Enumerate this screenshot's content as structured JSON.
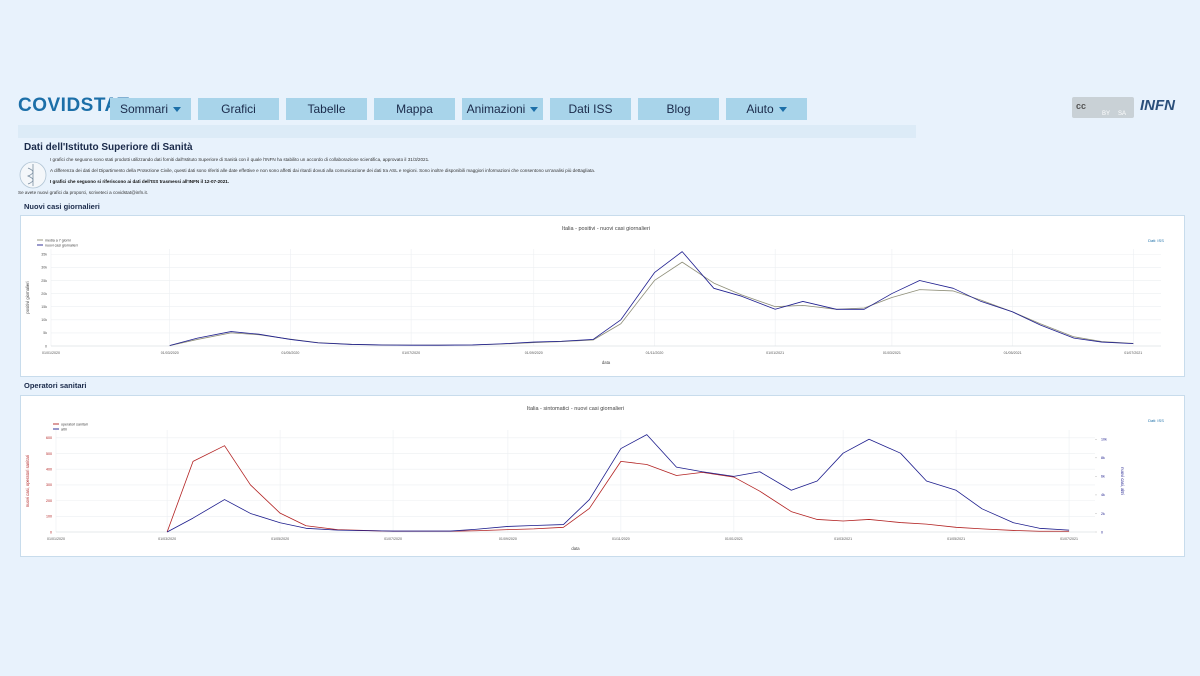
{
  "header": {
    "logo": "COVIDSTAT",
    "menu": [
      {
        "label": "Sommari",
        "dropdown": true
      },
      {
        "label": "Grafici",
        "dropdown": false
      },
      {
        "label": "Tabelle",
        "dropdown": false
      },
      {
        "label": "Mappa",
        "dropdown": false
      },
      {
        "label": "Animazioni",
        "dropdown": true
      },
      {
        "label": "Dati ISS",
        "dropdown": false
      },
      {
        "label": "Blog",
        "dropdown": false
      },
      {
        "label": "Aiuto",
        "dropdown": true
      }
    ],
    "license": {
      "cc": "cc",
      "by": "BY",
      "sa": "SA"
    },
    "partner": "INFN"
  },
  "intro": {
    "title": "Dati dell'Istituto Superiore di Sanità",
    "paragraphs": [
      "I grafici che seguono sono stati prodotti utilizzando dati forniti dall'Istituto Superiore di Sanità con il quale l'INFN ha stabilito un accordo di collaborazione scientifica, approvato il 31/3/2021.",
      "A differenza dei dati del Dipartimento della Protezione Civile, questi dati sono riferiti alle date effettive e non sono affetti dai ritardi dovuti alla comunicazione dei dati tra ASL e regioni. Sono inoltre disponibili maggiori informazioni che consentono un'analisi più dettagliata.",
      "I grafici che seguono si riferiscono ai dati dell'ISS trasmessi all'INFN il 12-07-2021."
    ],
    "contact": "Se avete nuovi grafici da proporci, scriveteci a covidstat@infn.it."
  },
  "sections": [
    "Nuovi casi giornalieri",
    "Operatori sanitari"
  ],
  "chart_data": [
    {
      "type": "line",
      "title": "Italia - positivi - nuovi casi giornalieri",
      "source": "Dati: ISS",
      "xlabel": "data",
      "ylabel": "positivi giornalieri",
      "legend": "top-left",
      "grid": true,
      "x": [
        "01/03/2020",
        "15/03/2020",
        "01/04/2020",
        "15/04/2020",
        "01/05/2020",
        "15/05/2020",
        "01/06/2020",
        "15/06/2020",
        "01/07/2020",
        "15/07/2020",
        "01/08/2020",
        "15/08/2020",
        "01/09/2020",
        "15/09/2020",
        "01/10/2020",
        "15/10/2020",
        "01/11/2020",
        "15/11/2020",
        "01/12/2020",
        "15/12/2020",
        "01/01/2021",
        "15/01/2021",
        "01/02/2021",
        "15/02/2021",
        "01/03/2021",
        "15/03/2021",
        "01/04/2021",
        "15/04/2021",
        "01/05/2021",
        "15/05/2021",
        "01/06/2021",
        "15/06/2021",
        "01/07/2021"
      ],
      "xlim": [
        "01/01/2020",
        "15/07/2021"
      ],
      "xticks": [
        "01/01/2020",
        "01/03/2020",
        "01/05/2020",
        "01/07/2020",
        "01/09/2020",
        "01/11/2020",
        "01/01/2021",
        "01/03/2021",
        "01/05/2021",
        "01/07/2021"
      ],
      "ylim": [
        0,
        37000
      ],
      "yticks": [
        0,
        {
          "value": 5000,
          "label": "5k"
        },
        {
          "value": 10000,
          "label": "10k"
        },
        {
          "value": 15000,
          "label": "15k"
        },
        {
          "value": 20000,
          "label": "20k"
        },
        {
          "value": 25000,
          "label": "25k"
        },
        {
          "value": 30000,
          "label": "30k"
        },
        {
          "value": 35000,
          "label": "35k"
        }
      ],
      "series": [
        {
          "name": "media a 7 giorni",
          "color": "#8e8e78",
          "values": [
            150,
            2500,
            5000,
            4300,
            2600,
            1300,
            650,
            420,
            320,
            300,
            380,
            700,
            1300,
            1700,
            2300,
            8500,
            25000,
            32000,
            24000,
            19500,
            15000,
            15500,
            14000,
            14500,
            18500,
            21500,
            21000,
            17500,
            13000,
            8500,
            3500,
            1700,
            1000
          ]
        },
        {
          "name": "nuovi casi giornalieri",
          "color": "#1f1f8f",
          "values": [
            200,
            3000,
            5500,
            4500,
            2500,
            1200,
            600,
            400,
            300,
            300,
            400,
            800,
            1500,
            1800,
            2500,
            10000,
            28000,
            36000,
            22000,
            19000,
            14000,
            17000,
            14000,
            14000,
            20000,
            25000,
            22000,
            17000,
            13000,
            8000,
            3000,
            1500,
            900
          ]
        }
      ]
    },
    {
      "type": "line",
      "title": "Italia - sintomatici - nuovi casi giornalieri",
      "source": "Dati: ISS",
      "xlabel": "data",
      "ylabel": "nuovi casi, operatori sanitari",
      "y2label": "nuovi casi, altri",
      "legend": "top-left",
      "grid": true,
      "x": [
        "01/03/2020",
        "15/03/2020",
        "01/04/2020",
        "15/04/2020",
        "01/05/2020",
        "15/05/2020",
        "01/06/2020",
        "15/06/2020",
        "01/07/2020",
        "15/07/2020",
        "01/08/2020",
        "15/08/2020",
        "01/09/2020",
        "15/09/2020",
        "01/10/2020",
        "15/10/2020",
        "01/11/2020",
        "15/11/2020",
        "01/12/2020",
        "15/12/2020",
        "01/01/2021",
        "15/01/2021",
        "01/02/2021",
        "15/02/2021",
        "01/03/2021",
        "15/03/2021",
        "01/04/2021",
        "15/04/2021",
        "01/05/2021",
        "15/05/2021",
        "01/06/2021",
        "15/06/2021",
        "01/07/2021"
      ],
      "xlim": [
        "01/01/2020",
        "15/07/2021"
      ],
      "xticks": [
        "01/01/2020",
        "01/03/2020",
        "01/05/2020",
        "01/07/2020",
        "01/09/2020",
        "01/11/2020",
        "01/01/2021",
        "01/03/2021",
        "01/05/2021",
        "01/07/2021"
      ],
      "ylim": [
        0,
        650
      ],
      "yticks": [
        0,
        100,
        200,
        300,
        400,
        500,
        600
      ],
      "y2lim": [
        0,
        11000
      ],
      "y2ticks": [
        0,
        {
          "value": 2000,
          "label": "2k"
        },
        {
          "value": 4000,
          "label": "4k"
        },
        {
          "value": 6000,
          "label": "6k"
        },
        {
          "value": 8000,
          "label": "8k"
        },
        {
          "value": 10000,
          "label": "10k"
        }
      ],
      "series": [
        {
          "name": "operatori sanitari",
          "color": "#b22222",
          "values": [
            0,
            450,
            550,
            300,
            120,
            40,
            15,
            10,
            5,
            5,
            5,
            8,
            15,
            20,
            30,
            150,
            450,
            430,
            360,
            380,
            350,
            260,
            130,
            80,
            70,
            80,
            60,
            50,
            30,
            20,
            10,
            5,
            5
          ]
        },
        {
          "name": "altri",
          "color": "#1c1c8c",
          "axis": "y2",
          "values": [
            0,
            1500,
            3500,
            2000,
            1000,
            400,
            200,
            150,
            100,
            100,
            100,
            300,
            600,
            700,
            800,
            3500,
            9000,
            10500,
            7000,
            6500,
            6000,
            6500,
            4500,
            5500,
            8500,
            10000,
            8500,
            5500,
            4500,
            2500,
            1000,
            400,
            200
          ]
        }
      ]
    }
  ]
}
